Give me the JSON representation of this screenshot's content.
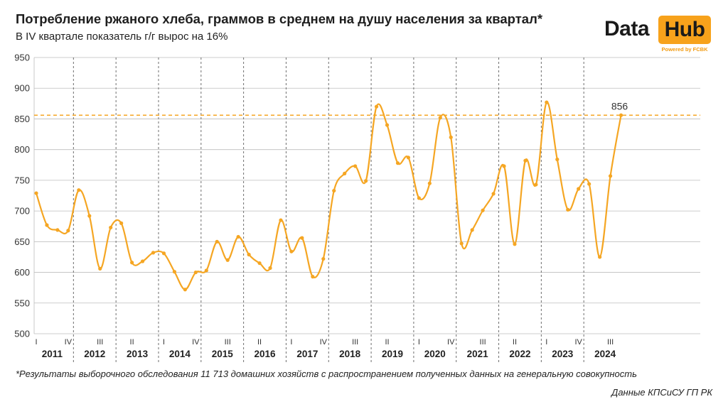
{
  "title": "Потребление ржаного хлеба, граммов в среднем на душу населения за квартал*",
  "subtitle": "В IV квартале показатель г/г вырос на 16%",
  "logo": {
    "word1": "Data",
    "word2": "Hub",
    "tagline": "Powered by FCBK"
  },
  "footnote": "*Результаты выборочного обследования 11 713 домашних хозяйств с распространением полученных данных на генеральную совокупность",
  "source": "Данные КПСиСУ ГП РК",
  "colors": {
    "line": "#f5a623",
    "reference": "#f5a623",
    "grid": "#bdbdbd",
    "divider": "#6e6e6e"
  },
  "chart_data": {
    "type": "line",
    "ylim": [
      500,
      950
    ],
    "yticks": [
      500,
      550,
      600,
      650,
      700,
      750,
      800,
      850,
      900,
      950
    ],
    "years": [
      "2011",
      "2012",
      "2013",
      "2014",
      "2015",
      "2016",
      "2017",
      "2018",
      "2019",
      "2020",
      "2021",
      "2022",
      "2023",
      "2024"
    ],
    "quarter_ticks": [
      {
        "year": "2011",
        "label": "I"
      },
      {
        "year": "2011",
        "label": "IV"
      },
      {
        "year": "2012",
        "label": "III"
      },
      {
        "year": "2013",
        "label": "II"
      },
      {
        "year": "2014",
        "label": "I"
      },
      {
        "year": "2014",
        "label": "IV"
      },
      {
        "year": "2015",
        "label": "III"
      },
      {
        "year": "2016",
        "label": "II"
      },
      {
        "year": "2017",
        "label": "I"
      },
      {
        "year": "2017",
        "label": "IV"
      },
      {
        "year": "2018",
        "label": "III"
      },
      {
        "year": "2019",
        "label": "II"
      },
      {
        "year": "2020",
        "label": "I"
      },
      {
        "year": "2020",
        "label": "IV"
      },
      {
        "year": "2021",
        "label": "III"
      },
      {
        "year": "2022",
        "label": "II"
      },
      {
        "year": "2023",
        "label": "I"
      },
      {
        "year": "2023",
        "label": "IV"
      },
      {
        "year": "2024",
        "label": "III"
      }
    ],
    "series": [
      {
        "values": [
          729,
          677,
          669,
          668,
          734,
          692,
          606,
          673,
          680,
          616,
          618,
          632,
          631,
          601,
          572,
          600,
          603,
          650,
          620,
          658,
          629,
          615,
          607,
          685,
          634,
          656,
          593,
          622,
          733,
          761,
          773,
          749,
          870,
          840,
          778,
          787,
          721,
          745,
          852,
          820,
          647,
          669,
          701,
          728,
          773,
          646,
          782,
          743,
          877,
          784,
          702,
          736,
          744,
          625,
          757,
          856
        ]
      }
    ],
    "reference_line": 856,
    "last_value_label": "856"
  }
}
